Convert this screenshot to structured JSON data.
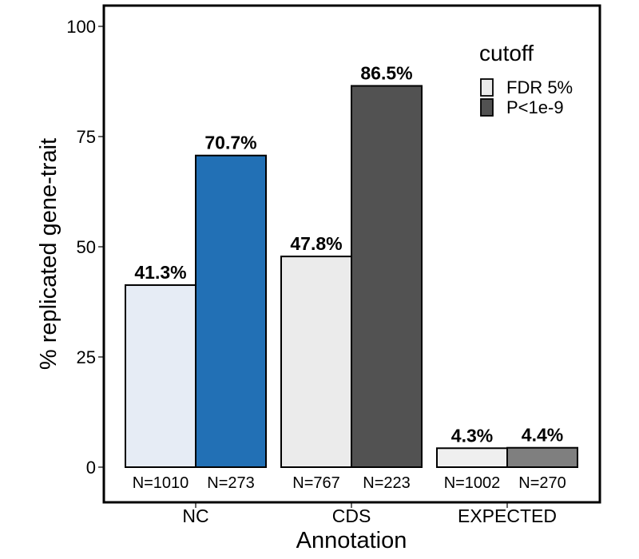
{
  "chart_data": {
    "type": "bar",
    "xlabel": "Annotation",
    "ylabel": "% replicated gene-trait",
    "ylim": [
      -7,
      105
    ],
    "yticks": [
      0,
      25,
      50,
      75,
      100
    ],
    "grid": false,
    "legend": {
      "title": "cutoff",
      "placement": "top-right",
      "entries": [
        {
          "label": "FDR 5%",
          "color": "#ebebeb"
        },
        {
          "label": "P<1e-9",
          "color": "#525252"
        }
      ]
    },
    "categories": [
      "NC",
      "CDS",
      "EXPECTED"
    ],
    "series": [
      {
        "name": "FDR 5%",
        "values": [
          41.3,
          47.8,
          4.3
        ],
        "labels": [
          "41.3%",
          "47.8%",
          "4.3%"
        ],
        "n": [
          "N=1010",
          "N=767",
          "N=1002"
        ]
      },
      {
        "name": "P<1e-9",
        "values": [
          70.7,
          86.5,
          4.4
        ],
        "labels": [
          "70.7%",
          "86.5%",
          "4.4%"
        ],
        "n": [
          "N=273",
          "N=223",
          "N=270"
        ]
      }
    ],
    "bar_colors": [
      [
        "#e6ecf5",
        "#2270b5"
      ],
      [
        "#ebebeb",
        "#525252"
      ],
      [
        "#efefef",
        "#7f7f7f"
      ]
    ]
  }
}
